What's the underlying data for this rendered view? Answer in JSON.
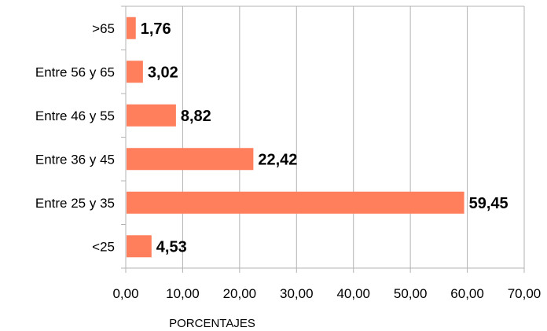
{
  "chart_data": {
    "type": "bar",
    "orientation": "horizontal",
    "categories": [
      ">65",
      "Entre 56 y 65",
      "Entre 46 y 55",
      "Entre 36 y 45",
      "Entre 25 y 35",
      "<25"
    ],
    "values": [
      1.76,
      3.02,
      8.82,
      22.42,
      59.45,
      4.53
    ],
    "data_labels": [
      "1,76",
      "3,02",
      "8,82",
      "22,42",
      "59,45",
      "4,53"
    ],
    "x_ticks": [
      "0,00",
      "10,00",
      "20,00",
      "30,00",
      "40,00",
      "50,00",
      "60,00",
      "70,00"
    ],
    "xlim": [
      0,
      70
    ],
    "xlabel": "PORCENTAJES",
    "ylabel": "",
    "title": "",
    "grid": "vertical",
    "legend": "none",
    "bar_color": "#ff7f5c",
    "grid_color": "#b3b3b3"
  }
}
